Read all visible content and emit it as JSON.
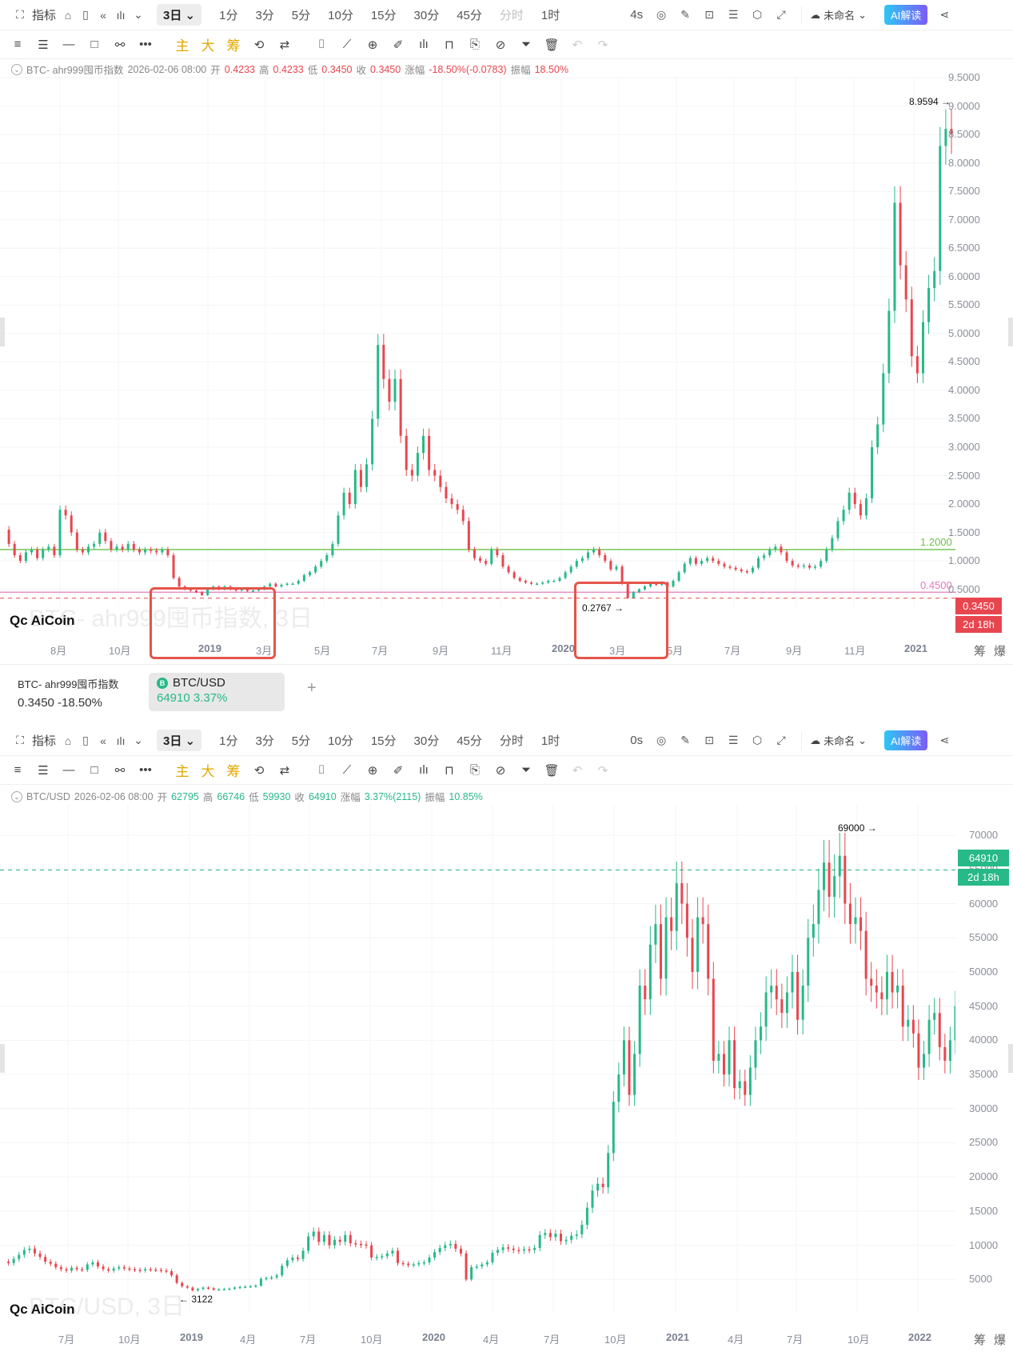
{
  "toolbar": {
    "indicator_label": "指标",
    "interval_selected": "3日",
    "intervals": [
      "1分",
      "3分",
      "5分",
      "10分",
      "15分",
      "30分",
      "45分",
      "分时",
      "1时"
    ],
    "intervals_dim": [
      false,
      false,
      false,
      false,
      false,
      false,
      false,
      true,
      false
    ],
    "refresh_top": "4s",
    "refresh_bottom": "0s",
    "layout_name": "未命名",
    "ai_label": "AI解读",
    "draw_tools_yellow": [
      "主",
      "大",
      "筹"
    ]
  },
  "top_chart": {
    "symbol": "BTC- ahr999囤币指数",
    "datetime": "2026-02-06 08:00",
    "open_label": "开",
    "open": "0.4233",
    "high_label": "高",
    "high": "0.4233",
    "low_label": "低",
    "low": "0.3450",
    "close_label": "收",
    "close": "0.3450",
    "change_label": "涨幅",
    "change": "-18.50%(-0.0783)",
    "amp_label": "振幅",
    "amp": "18.50%",
    "watermark": "BTC- ahr999囤币指数, 3日",
    "logo": "AiCoin",
    "max_marker": "8.9594 →",
    "min_marker": "0.2767 →",
    "line_green_label": "1.2000",
    "line_pink_label": "0.4500",
    "last_price_tag": "0.3450",
    "countdown_tag": "2d 18h",
    "corner_labels": [
      "筹",
      "爆"
    ]
  },
  "tabs": {
    "tab1_name": "BTC- ahr999囤币指数",
    "tab1_price": "0.3450  -18.50%",
    "tab2_name": "BTC/USD",
    "tab2_price": "64910  3.37%",
    "add_label": "+"
  },
  "bottom_chart": {
    "symbol": "BTC/USD",
    "datetime": "2026-02-06 08:00",
    "open_label": "开",
    "open": "62795",
    "high_label": "高",
    "high": "66746",
    "low_label": "低",
    "low": "59930",
    "close_label": "收",
    "close": "64910",
    "change_label": "涨幅",
    "change": "3.37%(2115)",
    "amp_label": "振幅",
    "amp": "10.85%",
    "watermark": "BTC/USD, 3日",
    "logo": "AiCoin",
    "max_marker": "69000 →",
    "min_marker": "← 3122",
    "last_price_tag": "64910",
    "countdown_tag": "2d 18h",
    "corner_labels": [
      "筹",
      "爆"
    ]
  },
  "colors": {
    "up": "#27b987",
    "down": "#e8464f",
    "green_line": "#6cc04a",
    "pink_line": "#e07bc0",
    "box": "#e5544a"
  },
  "chart_data": [
    {
      "type": "candlestick",
      "title": "BTC- ahr999囤币指数, 3日",
      "yticks": [
        "9.5000",
        "9.0000",
        "8.5000",
        "8.0000",
        "7.5000",
        "7.0000",
        "6.5000",
        "6.0000",
        "5.5000",
        "5.0000",
        "4.5000",
        "4.0000",
        "3.5000",
        "3.0000",
        "2.5000",
        "2.0000",
        "1.5000",
        "1.0000",
        "0.5000"
      ],
      "ylim": [
        0.2,
        9.6
      ],
      "xticks": [
        "8月",
        "10月",
        "2019",
        "3月",
        "5月",
        "7月",
        "9月",
        "11月",
        "2020",
        "3月",
        "5月",
        "7月",
        "9月",
        "11月",
        "2021"
      ],
      "xtick_pos": [
        75,
        148,
        260,
        332,
        405,
        477,
        553,
        626,
        702,
        774,
        846,
        918,
        995,
        1068,
        1143
      ],
      "hlines": [
        {
          "value": 1.2,
          "label": "1.2000",
          "color": "green"
        },
        {
          "value": 0.45,
          "label": "0.4500",
          "color": "pink"
        }
      ],
      "annotations": [
        {
          "text": "8.9594",
          "value": 8.9594
        },
        {
          "text": "0.2767",
          "value": 0.2767
        }
      ],
      "highlight_boxes": [
        {
          "from": "2018-11",
          "to": "2019-03"
        },
        {
          "from": "2020-02",
          "to": "2020-04"
        }
      ],
      "series_close": [
        1.55,
        1.3,
        1.1,
        1.0,
        1.15,
        1.2,
        1.05,
        1.2,
        1.25,
        1.1,
        1.9,
        1.8,
        1.5,
        1.2,
        1.15,
        1.25,
        1.3,
        1.5,
        1.35,
        1.2,
        1.25,
        1.2,
        1.3,
        1.2,
        1.15,
        1.2,
        1.18,
        1.15,
        1.2,
        1.1,
        0.7,
        0.55,
        0.5,
        0.48,
        0.45,
        0.4,
        0.5,
        0.55,
        0.5,
        0.55,
        0.5,
        0.48,
        0.5,
        0.47,
        0.48,
        0.5,
        0.55,
        0.6,
        0.55,
        0.58,
        0.6,
        0.6,
        0.65,
        0.75,
        0.8,
        0.9,
        1.0,
        1.1,
        1.3,
        1.8,
        2.2,
        2.0,
        2.6,
        2.3,
        2.7,
        3.5,
        4.8,
        4.2,
        3.8,
        4.2,
        3.2,
        2.6,
        2.5,
        2.9,
        3.2,
        2.6,
        2.5,
        2.3,
        2.1,
        2.0,
        1.9,
        1.7,
        1.2,
        1.05,
        1.0,
        0.95,
        1.2,
        1.1,
        0.9,
        0.8,
        0.7,
        0.65,
        0.62,
        0.6,
        0.6,
        0.62,
        0.65,
        0.65,
        0.7,
        0.8,
        0.9,
        1.0,
        1.05,
        1.15,
        1.2,
        1.1,
        1.0,
        0.85,
        0.9,
        0.6,
        0.35,
        0.45,
        0.5,
        0.55,
        0.6,
        0.58,
        0.62,
        0.55,
        0.65,
        0.8,
        0.95,
        1.05,
        0.95,
        1.0,
        1.05,
        1.0,
        0.95,
        0.9,
        0.88,
        0.85,
        0.82,
        0.8,
        0.88,
        1.05,
        1.1,
        1.2,
        1.25,
        1.15,
        1.0,
        0.92,
        0.9,
        0.92,
        0.88,
        0.9,
        1.0,
        1.2,
        1.4,
        1.7,
        1.9,
        2.2,
        2.0,
        1.8,
        2.1,
        3.0,
        3.4,
        4.3,
        5.4,
        7.3,
        6.2,
        5.6,
        4.6,
        4.3,
        5.2,
        5.8,
        6.1,
        8.3,
        8.6,
        8.5
      ]
    },
    {
      "type": "candlestick",
      "title": "BTC/USD, 3日",
      "yticks": [
        "70000",
        "65000",
        "60000",
        "55000",
        "50000",
        "45000",
        "40000",
        "35000",
        "30000",
        "25000",
        "20000",
        "15000",
        "10000",
        "5000"
      ],
      "ylim": [
        0,
        72000
      ],
      "xticks": [
        "7月",
        "10月",
        "2019",
        "4月",
        "7月",
        "10月",
        "2020",
        "4月",
        "7月",
        "10月",
        "2021",
        "4月",
        "7月",
        "10月",
        "2022"
      ],
      "xtick_pos": [
        85,
        160,
        237,
        312,
        387,
        463,
        540,
        616,
        692,
        768,
        845,
        922,
        996,
        1072,
        1148
      ],
      "annotations": [
        {
          "text": "69000",
          "value": 69000
        },
        {
          "text": "3122",
          "value": 3122
        }
      ],
      "last_price_line": 64910,
      "series_close": [
        7600,
        7400,
        8000,
        8600,
        9300,
        9500,
        8800,
        8300,
        7600,
        7300,
        6800,
        6500,
        6300,
        6700,
        6500,
        6400,
        7200,
        7500,
        6900,
        6500,
        6300,
        6600,
        6800,
        6600,
        6500,
        6400,
        6300,
        6500,
        6450,
        6400,
        6300,
        6200,
        5600,
        4500,
        4000,
        3800,
        3400,
        3600,
        3800,
        3700,
        3500,
        3550,
        3600,
        3650,
        3800,
        3900,
        3950,
        4000,
        4100,
        5100,
        5200,
        5300,
        5600,
        7000,
        7800,
        8200,
        8000,
        9200,
        11300,
        12000,
        10500,
        11500,
        10000,
        10800,
        10500,
        11500,
        10300,
        10200,
        10100,
        10000,
        8200,
        8300,
        8400,
        8800,
        9200,
        7400,
        7300,
        7100,
        7200,
        7400,
        7500,
        8200,
        9000,
        9600,
        10000,
        10200,
        9500,
        8800,
        5000,
        6800,
        6900,
        7200,
        7500,
        8900,
        9300,
        9700,
        9500,
        9300,
        9200,
        9400,
        9300,
        9600,
        11500,
        11800,
        11200,
        11700,
        10600,
        10800,
        11400,
        11600,
        13000,
        15500,
        18000,
        19000,
        18500,
        23500,
        31000,
        35000,
        40000,
        32000,
        38000,
        48000,
        46000,
        54000,
        57000,
        49000,
        58000,
        56000,
        63000,
        60000,
        55000,
        50000,
        58000,
        57000,
        49000,
        37000,
        38000,
        35000,
        40000,
        33000,
        34000,
        32000,
        36000,
        40000,
        42000,
        47000,
        48000,
        46000,
        44000,
        47000,
        50000,
        43000,
        48000,
        55000,
        57000,
        62000,
        66000,
        61000,
        64000,
        67000,
        60000,
        57000,
        58000,
        56000,
        49000,
        48000,
        47000,
        46000,
        50000,
        47000,
        48000,
        42000,
        43000,
        41000,
        36000,
        38000,
        43000,
        44000,
        39000,
        37000,
        40000,
        45000
      ]
    }
  ]
}
